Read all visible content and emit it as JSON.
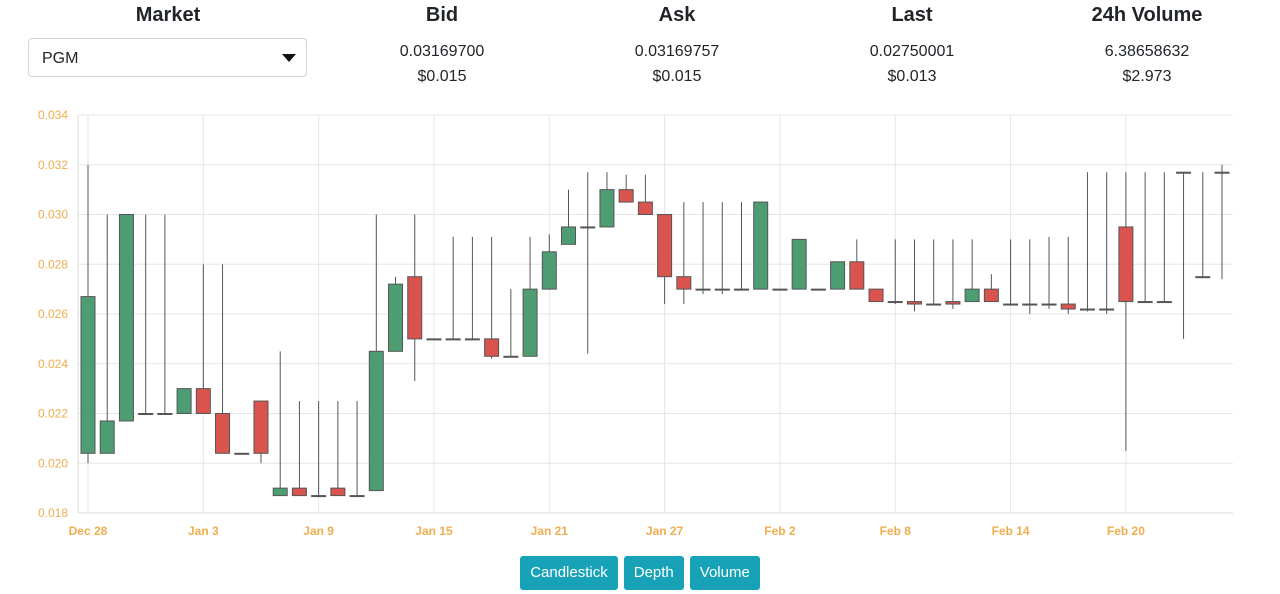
{
  "market": {
    "label": "Market",
    "selected": "PGM"
  },
  "stats": {
    "bid": {
      "label": "Bid",
      "value": "0.03169700",
      "usd": "$0.015"
    },
    "ask": {
      "label": "Ask",
      "value": "0.03169757",
      "usd": "$0.015"
    },
    "last": {
      "label": "Last",
      "value": "0.02750001",
      "usd": "$0.013"
    },
    "volume": {
      "label": "24h Volume",
      "value": "6.38658632",
      "usd": "$2.973"
    }
  },
  "buttons": [
    "Candlestick",
    "Depth",
    "Volume"
  ],
  "colors": {
    "up": "#4e9d72",
    "down": "#d9534f",
    "axis_text": "#f0ad4e",
    "button": "#17a2b8"
  },
  "chart_data": {
    "type": "candlestick",
    "ylim": [
      0.018,
      0.034
    ],
    "y_ticks": [
      "0.034",
      "0.032",
      "0.030",
      "0.028",
      "0.026",
      "0.024",
      "0.022",
      "0.020",
      "0.018"
    ],
    "x_ticks": [
      "Dec 28",
      "Jan 3",
      "Jan 9",
      "Jan 15",
      "Jan 21",
      "Jan 27",
      "Feb 2",
      "Feb 8",
      "Feb 14",
      "Feb 20"
    ],
    "grid": true,
    "candles": [
      {
        "date": "Dec 28",
        "open": 0.0204,
        "high": 0.032,
        "low": 0.02,
        "close": 0.0267
      },
      {
        "date": "Dec 29",
        "open": 0.0204,
        "high": 0.03,
        "low": 0.0204,
        "close": 0.0217
      },
      {
        "date": "Dec 30",
        "open": 0.0217,
        "high": 0.03,
        "low": 0.0217,
        "close": 0.03
      },
      {
        "date": "Dec 31",
        "open": 0.022,
        "high": 0.03,
        "low": 0.022,
        "close": 0.022
      },
      {
        "date": "Jan 1",
        "open": 0.022,
        "high": 0.03,
        "low": 0.022,
        "close": 0.022
      },
      {
        "date": "Jan 2",
        "open": 0.022,
        "high": 0.023,
        "low": 0.022,
        "close": 0.023
      },
      {
        "date": "Jan 3",
        "open": 0.023,
        "high": 0.028,
        "low": 0.022,
        "close": 0.022
      },
      {
        "date": "Jan 4",
        "open": 0.022,
        "high": 0.028,
        "low": 0.0204,
        "close": 0.0204
      },
      {
        "date": "Jan 5",
        "open": 0.0204,
        "high": 0.0204,
        "low": 0.0204,
        "close": 0.0204
      },
      {
        "date": "Jan 6",
        "open": 0.0225,
        "high": 0.0225,
        "low": 0.02,
        "close": 0.0204
      },
      {
        "date": "Jan 7",
        "open": 0.0187,
        "high": 0.0245,
        "low": 0.0187,
        "close": 0.019
      },
      {
        "date": "Jan 8",
        "open": 0.019,
        "high": 0.0225,
        "low": 0.0187,
        "close": 0.0187
      },
      {
        "date": "Jan 9",
        "open": 0.0187,
        "high": 0.0225,
        "low": 0.0187,
        "close": 0.0187
      },
      {
        "date": "Jan 10",
        "open": 0.019,
        "high": 0.0225,
        "low": 0.0187,
        "close": 0.0187
      },
      {
        "date": "Jan 11",
        "open": 0.0187,
        "high": 0.0225,
        "low": 0.0187,
        "close": 0.0187
      },
      {
        "date": "Jan 12",
        "open": 0.0189,
        "high": 0.03,
        "low": 0.0189,
        "close": 0.0245
      },
      {
        "date": "Jan 13",
        "open": 0.0245,
        "high": 0.0275,
        "low": 0.0245,
        "close": 0.0272
      },
      {
        "date": "Jan 14",
        "open": 0.0275,
        "high": 0.03,
        "low": 0.0233,
        "close": 0.025
      },
      {
        "date": "Jan 15",
        "open": 0.025,
        "high": 0.025,
        "low": 0.025,
        "close": 0.025
      },
      {
        "date": "Jan 16",
        "open": 0.025,
        "high": 0.0291,
        "low": 0.025,
        "close": 0.025
      },
      {
        "date": "Jan 17",
        "open": 0.025,
        "high": 0.0291,
        "low": 0.025,
        "close": 0.025
      },
      {
        "date": "Jan 18",
        "open": 0.025,
        "high": 0.0291,
        "low": 0.0242,
        "close": 0.0243
      },
      {
        "date": "Jan 19",
        "open": 0.0243,
        "high": 0.027,
        "low": 0.0243,
        "close": 0.0243
      },
      {
        "date": "Jan 20",
        "open": 0.0243,
        "high": 0.0291,
        "low": 0.0243,
        "close": 0.027
      },
      {
        "date": "Jan 21",
        "open": 0.027,
        "high": 0.0292,
        "low": 0.027,
        "close": 0.0285
      },
      {
        "date": "Jan 22",
        "open": 0.0288,
        "high": 0.031,
        "low": 0.0288,
        "close": 0.0295
      },
      {
        "date": "Jan 23",
        "open": 0.0295,
        "high": 0.0317,
        "low": 0.0244,
        "close": 0.0295
      },
      {
        "date": "Jan 24",
        "open": 0.0295,
        "high": 0.0317,
        "low": 0.0295,
        "close": 0.031
      },
      {
        "date": "Jan 25",
        "open": 0.031,
        "high": 0.0316,
        "low": 0.0305,
        "close": 0.0305
      },
      {
        "date": "Jan 26",
        "open": 0.0305,
        "high": 0.0316,
        "low": 0.03,
        "close": 0.03
      },
      {
        "date": "Jan 27",
        "open": 0.03,
        "high": 0.03,
        "low": 0.0264,
        "close": 0.0275
      },
      {
        "date": "Jan 28",
        "open": 0.0275,
        "high": 0.0305,
        "low": 0.0264,
        "close": 0.027
      },
      {
        "date": "Jan 29",
        "open": 0.027,
        "high": 0.0305,
        "low": 0.0268,
        "close": 0.027
      },
      {
        "date": "Jan 30",
        "open": 0.027,
        "high": 0.0305,
        "low": 0.0268,
        "close": 0.027
      },
      {
        "date": "Jan 31",
        "open": 0.027,
        "high": 0.0305,
        "low": 0.027,
        "close": 0.027
      },
      {
        "date": "Feb 1",
        "open": 0.027,
        "high": 0.0305,
        "low": 0.027,
        "close": 0.0305
      },
      {
        "date": "Feb 2",
        "open": 0.027,
        "high": 0.027,
        "low": 0.027,
        "close": 0.027
      },
      {
        "date": "Feb 3",
        "open": 0.027,
        "high": 0.029,
        "low": 0.027,
        "close": 0.029
      },
      {
        "date": "Feb 4",
        "open": 0.027,
        "high": 0.027,
        "low": 0.027,
        "close": 0.027
      },
      {
        "date": "Feb 5",
        "open": 0.027,
        "high": 0.0281,
        "low": 0.027,
        "close": 0.0281
      },
      {
        "date": "Feb 6",
        "open": 0.0281,
        "high": 0.029,
        "low": 0.027,
        "close": 0.027
      },
      {
        "date": "Feb 7",
        "open": 0.027,
        "high": 0.027,
        "low": 0.0265,
        "close": 0.0265
      },
      {
        "date": "Feb 8",
        "open": 0.0265,
        "high": 0.029,
        "low": 0.0264,
        "close": 0.0265
      },
      {
        "date": "Feb 9",
        "open": 0.0265,
        "high": 0.029,
        "low": 0.0261,
        "close": 0.0264
      },
      {
        "date": "Feb 10",
        "open": 0.0264,
        "high": 0.029,
        "low": 0.0264,
        "close": 0.0264
      },
      {
        "date": "Feb 11",
        "open": 0.0265,
        "high": 0.029,
        "low": 0.0262,
        "close": 0.0264
      },
      {
        "date": "Feb 12",
        "open": 0.0265,
        "high": 0.029,
        "low": 0.0265,
        "close": 0.027
      },
      {
        "date": "Feb 13",
        "open": 0.027,
        "high": 0.0276,
        "low": 0.0265,
        "close": 0.0265
      },
      {
        "date": "Feb 14",
        "open": 0.0264,
        "high": 0.029,
        "low": 0.0264,
        "close": 0.0264
      },
      {
        "date": "Feb 15",
        "open": 0.0264,
        "high": 0.029,
        "low": 0.026,
        "close": 0.0264
      },
      {
        "date": "Feb 16",
        "open": 0.0264,
        "high": 0.0291,
        "low": 0.0262,
        "close": 0.0264
      },
      {
        "date": "Feb 17",
        "open": 0.0264,
        "high": 0.0291,
        "low": 0.026,
        "close": 0.0262
      },
      {
        "date": "Feb 18",
        "open": 0.0262,
        "high": 0.0317,
        "low": 0.0261,
        "close": 0.0262
      },
      {
        "date": "Feb 19",
        "open": 0.0262,
        "high": 0.0317,
        "low": 0.026,
        "close": 0.0262
      },
      {
        "date": "Feb 20",
        "open": 0.0295,
        "high": 0.0317,
        "low": 0.0205,
        "close": 0.0265
      },
      {
        "date": "Feb 21",
        "open": 0.0265,
        "high": 0.0317,
        "low": 0.0265,
        "close": 0.0265
      },
      {
        "date": "Feb 22",
        "open": 0.0265,
        "high": 0.0317,
        "low": 0.0265,
        "close": 0.0265
      },
      {
        "date": "Feb 23",
        "open": 0.0317,
        "high": 0.0317,
        "low": 0.025,
        "close": 0.0317
      },
      {
        "date": "Feb 24",
        "open": 0.0275,
        "high": 0.0317,
        "low": 0.0275,
        "close": 0.0275
      },
      {
        "date": "Feb 25",
        "open": 0.0317,
        "high": 0.032,
        "low": 0.0274,
        "close": 0.0317
      }
    ]
  }
}
